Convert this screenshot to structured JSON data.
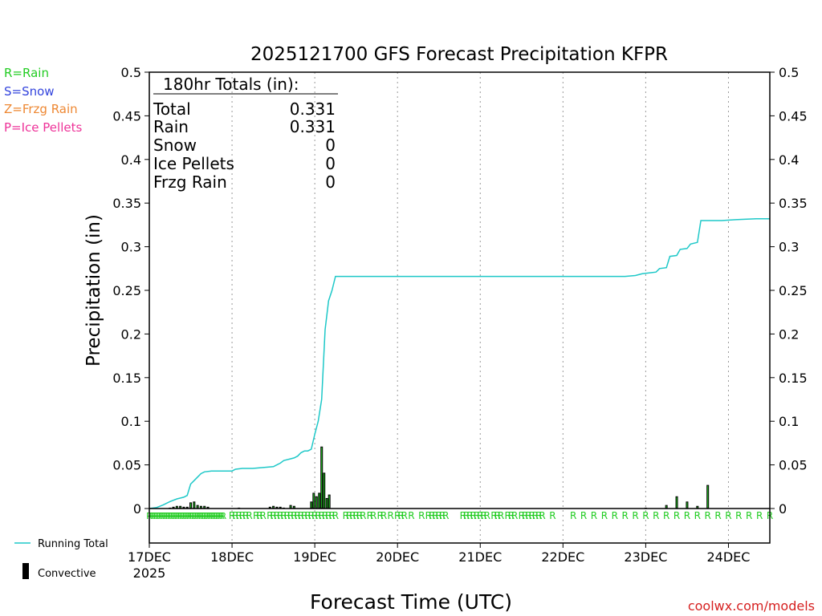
{
  "chart_data": {
    "type": "bar+line",
    "title": "2025121700 GFS Forecast Precipitation KFPR",
    "xlabel": "Forecast Time (UTC)",
    "ylabel": "Precipitation (in)",
    "ylim": [
      0,
      0.5
    ],
    "yticks": [
      "0",
      "0.05",
      "0.1",
      "0.15",
      "0.2",
      "0.25",
      "0.3",
      "0.35",
      "0.4",
      "0.45",
      "0.5"
    ],
    "x_range_hours": [
      0,
      180
    ],
    "xticks": [
      {
        "hour": 0,
        "label": "17DEC",
        "sub": "2025"
      },
      {
        "hour": 24,
        "label": "18DEC"
      },
      {
        "hour": 48,
        "label": "19DEC"
      },
      {
        "hour": 72,
        "label": "20DEC"
      },
      {
        "hour": 96,
        "label": "21DEC"
      },
      {
        "hour": 120,
        "label": "22DEC"
      },
      {
        "hour": 144,
        "label": "23DEC"
      },
      {
        "hour": 168,
        "label": "24DEC"
      }
    ],
    "legend_types": [
      {
        "text": "R=Rain",
        "color": "#22cc22"
      },
      {
        "text": "S=Snow",
        "color": "#3344dd"
      },
      {
        "text": "Z=Frzg Rain",
        "color": "#ee8833"
      },
      {
        "text": "P=Ice Pellets",
        "color": "#ee3399"
      }
    ],
    "legend_series": [
      {
        "text": "Running Total",
        "color": "#1ec8c8"
      },
      {
        "text": "Convective",
        "color": "#000000"
      }
    ],
    "totals_box": {
      "header": "180hr Totals (in):",
      "rows": [
        {
          "label": "Total",
          "value": "0.331"
        },
        {
          "label": "Rain",
          "value": "0.331"
        },
        {
          "label": "Snow",
          "value": "0"
        },
        {
          "label": "Ice Pellets",
          "value": "0"
        },
        {
          "label": "Frzg Rain",
          "value": "0"
        }
      ]
    },
    "running_total": [
      [
        0,
        0
      ],
      [
        2,
        0.001
      ],
      [
        4,
        0.004
      ],
      [
        6,
        0.008
      ],
      [
        8,
        0.011
      ],
      [
        10,
        0.013
      ],
      [
        11,
        0.015
      ],
      [
        12,
        0.028
      ],
      [
        13,
        0.032
      ],
      [
        14,
        0.036
      ],
      [
        15,
        0.04
      ],
      [
        16,
        0.042
      ],
      [
        18,
        0.043
      ],
      [
        22,
        0.043
      ],
      [
        24,
        0.043
      ],
      [
        25,
        0.045
      ],
      [
        27,
        0.046
      ],
      [
        30,
        0.046
      ],
      [
        33,
        0.047
      ],
      [
        36,
        0.048
      ],
      [
        37,
        0.05
      ],
      [
        38,
        0.052
      ],
      [
        39,
        0.055
      ],
      [
        41,
        0.057
      ],
      [
        42,
        0.058
      ],
      [
        43,
        0.06
      ],
      [
        44,
        0.064
      ],
      [
        45,
        0.066
      ],
      [
        46,
        0.066
      ],
      [
        47,
        0.068
      ],
      [
        48,
        0.085
      ],
      [
        49,
        0.1
      ],
      [
        50,
        0.125
      ],
      [
        51,
        0.205
      ],
      [
        52,
        0.238
      ],
      [
        53,
        0.25
      ],
      [
        54,
        0.266
      ],
      [
        60,
        0.266
      ],
      [
        80,
        0.266
      ],
      [
        100,
        0.266
      ],
      [
        120,
        0.266
      ],
      [
        138,
        0.266
      ],
      [
        141,
        0.267
      ],
      [
        143,
        0.269
      ],
      [
        145,
        0.27
      ],
      [
        147,
        0.271
      ],
      [
        148,
        0.275
      ],
      [
        150,
        0.276
      ],
      [
        151,
        0.289
      ],
      [
        153,
        0.29
      ],
      [
        154,
        0.297
      ],
      [
        156,
        0.298
      ],
      [
        157,
        0.303
      ],
      [
        159,
        0.305
      ],
      [
        160,
        0.33
      ],
      [
        166,
        0.33
      ],
      [
        170,
        0.331
      ],
      [
        176,
        0.332
      ],
      [
        180,
        0.332
      ]
    ],
    "convective_bars": [
      [
        6,
        0.001
      ],
      [
        7,
        0.002
      ],
      [
        8,
        0.003
      ],
      [
        9,
        0.003
      ],
      [
        10,
        0.002
      ],
      [
        11,
        0.002
      ],
      [
        12,
        0.007
      ],
      [
        13,
        0.008
      ],
      [
        14,
        0.004
      ],
      [
        15,
        0.003
      ],
      [
        16,
        0.003
      ],
      [
        17,
        0.002
      ],
      [
        26,
        0.001
      ],
      [
        35,
        0.002
      ],
      [
        36,
        0.003
      ],
      [
        37,
        0.002
      ],
      [
        38,
        0.002
      ],
      [
        39,
        0.001
      ],
      [
        41,
        0.004
      ],
      [
        42,
        0.003
      ],
      [
        47,
        0.008
      ],
      [
        47.7,
        0.018
      ],
      [
        48.5,
        0.014
      ],
      [
        49.3,
        0.018
      ],
      [
        50,
        0.071
      ],
      [
        50.7,
        0.041
      ],
      [
        51.5,
        0.012
      ],
      [
        52.2,
        0.016
      ],
      [
        144,
        0.001
      ],
      [
        150,
        0.004
      ],
      [
        153,
        0.014
      ],
      [
        156,
        0.008
      ],
      [
        159,
        0.003
      ],
      [
        162,
        0.027
      ]
    ],
    "precip_type_marks": {
      "symbol": "R",
      "dense_hours": [
        0,
        21
      ],
      "sparse_hours": [
        24,
        25,
        26,
        27,
        28,
        29,
        31,
        32,
        33,
        35,
        36,
        37,
        38,
        39,
        40,
        41,
        42,
        43,
        44,
        45,
        46,
        47,
        48,
        49,
        50,
        51,
        52,
        53,
        54,
        57,
        58,
        59,
        60,
        61,
        62,
        64,
        65,
        67,
        68,
        70,
        72,
        73,
        74,
        76,
        79,
        81,
        82,
        83,
        84,
        85,
        86,
        91,
        92,
        93,
        94,
        95,
        96,
        97,
        98,
        100,
        101,
        102,
        104,
        105,
        106,
        108,
        109,
        110,
        111,
        112,
        113,
        114,
        117,
        123,
        126,
        129,
        132,
        135,
        138,
        141,
        144,
        147,
        150,
        153,
        156,
        159,
        162,
        165,
        168,
        171,
        174,
        177,
        180
      ]
    },
    "credit": "coolwx.com/models"
  }
}
